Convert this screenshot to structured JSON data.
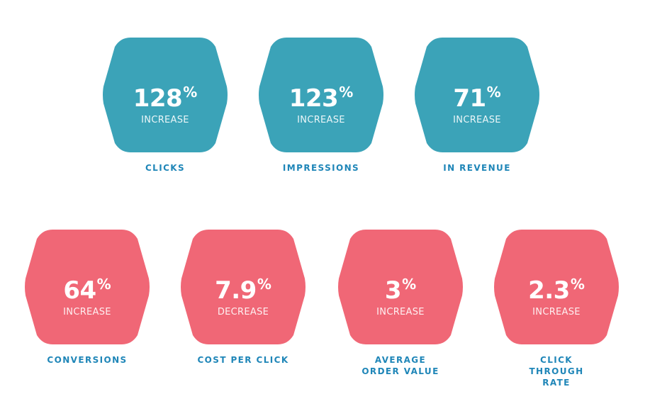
{
  "colors": {
    "teal": "#3ba3b8",
    "coral": "#f06776",
    "caption": "#1f86b8",
    "text": "#ffffff"
  },
  "stats": [
    {
      "value": "128",
      "unit": "%",
      "change": "INCREASE",
      "label": "CLICKS",
      "color": "teal"
    },
    {
      "value": "123",
      "unit": "%",
      "change": "INCREASE",
      "label": "IMPRESSIONS",
      "color": "teal"
    },
    {
      "value": "71",
      "unit": "%",
      "change": "INCREASE",
      "label": "IN REVENUE",
      "color": "teal"
    },
    {
      "value": "64",
      "unit": "%",
      "change": "INCREASE",
      "label": "CONVERSIONS",
      "color": "coral"
    },
    {
      "value": "7.9",
      "unit": "%",
      "change": "DECREASE",
      "label": "COST PER CLICK",
      "color": "coral"
    },
    {
      "value": "3",
      "unit": "%",
      "change": "INCREASE",
      "label": "AVERAGE ORDER VALUE",
      "color": "coral"
    },
    {
      "value": "2.3",
      "unit": "%",
      "change": "INCREASE",
      "label": "CLICK THROUGH RATE",
      "color": "coral"
    }
  ]
}
